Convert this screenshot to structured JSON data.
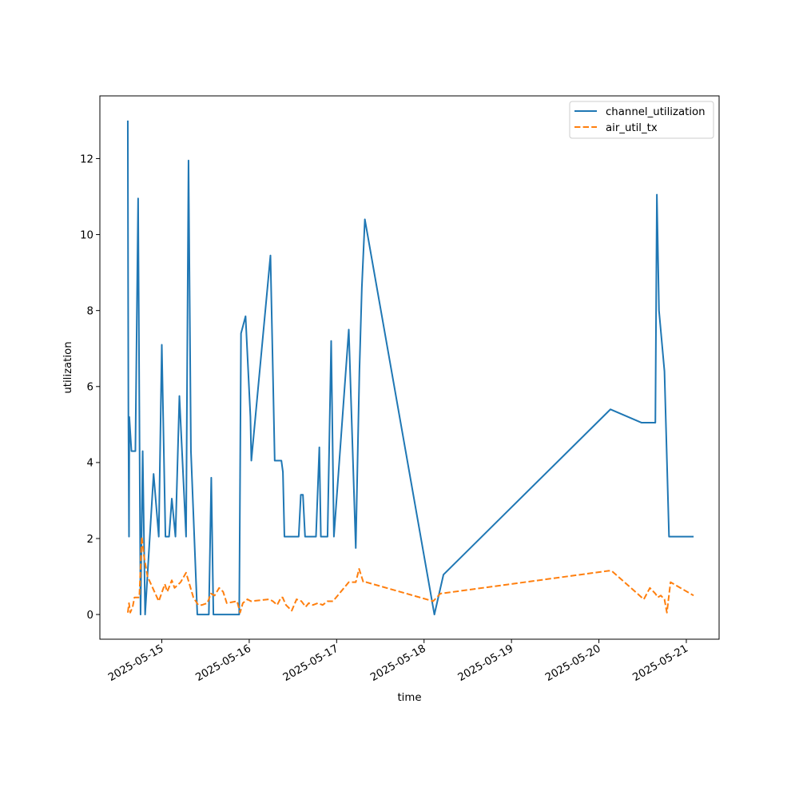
{
  "chart_data": {
    "type": "line",
    "title": "",
    "xlabel": "time",
    "ylabel": "utilization",
    "xlim": [
      "2025-05-14T07:00",
      "2025-05-21T09:00"
    ],
    "ylim": [
      -0.65,
      13.65
    ],
    "x_ticks": [
      "2025-05-15",
      "2025-05-16",
      "2025-05-17",
      "2025-05-18",
      "2025-05-19",
      "2025-05-20",
      "2025-05-21"
    ],
    "y_ticks": [
      0,
      2,
      4,
      6,
      8,
      10,
      12
    ],
    "grid": false,
    "legend": "top-right",
    "series": [
      {
        "name": "channel_utilization",
        "color": "#1f77b4",
        "style": "solid",
        "points": [
          [
            "2025-05-14T14:40",
            13.0
          ],
          [
            "2025-05-14T14:45",
            8.8
          ],
          [
            "2025-05-14T14:50",
            5.2
          ],
          [
            "2025-05-14T15:00",
            2.05
          ],
          [
            "2025-05-14T15:05",
            5.2
          ],
          [
            "2025-05-14T15:40",
            4.3
          ],
          [
            "2025-05-14T16:45",
            4.3
          ],
          [
            "2025-05-14T17:30",
            10.95
          ],
          [
            "2025-05-14T18:10",
            0.0
          ],
          [
            "2025-05-14T18:45",
            4.3
          ],
          [
            "2025-05-14T19:25",
            0.0
          ],
          [
            "2025-05-14T21:45",
            3.7
          ],
          [
            "2025-05-14T23:10",
            2.05
          ],
          [
            "2025-05-15T00:00",
            7.1
          ],
          [
            "2025-05-15T01:00",
            2.05
          ],
          [
            "2025-05-15T02:00",
            2.05
          ],
          [
            "2025-05-15T02:45",
            3.05
          ],
          [
            "2025-05-15T03:45",
            2.05
          ],
          [
            "2025-05-15T04:50",
            5.75
          ],
          [
            "2025-05-15T06:40",
            2.05
          ],
          [
            "2025-05-15T07:20",
            11.95
          ],
          [
            "2025-05-15T08:00",
            4.3
          ],
          [
            "2025-05-15T09:45",
            0.0
          ],
          [
            "2025-05-15T12:55",
            0.0
          ],
          [
            "2025-05-15T13:35",
            3.6
          ],
          [
            "2025-05-15T14:10",
            0.0
          ],
          [
            "2025-05-15T21:15",
            0.0
          ],
          [
            "2025-05-15T21:45",
            7.4
          ],
          [
            "2025-05-15T23:00",
            7.85
          ],
          [
            "2025-05-16T00:20",
            5.2
          ],
          [
            "2025-05-16T00:35",
            4.05
          ],
          [
            "2025-05-16T05:50",
            9.45
          ],
          [
            "2025-05-16T06:35",
            6.0
          ],
          [
            "2025-05-16T07:00",
            4.05
          ],
          [
            "2025-05-16T08:50",
            4.05
          ],
          [
            "2025-05-16T09:15",
            3.75
          ],
          [
            "2025-05-16T09:40",
            2.05
          ],
          [
            "2025-05-16T13:35",
            2.05
          ],
          [
            "2025-05-16T14:10",
            3.15
          ],
          [
            "2025-05-16T14:45",
            3.15
          ],
          [
            "2025-05-16T15:20",
            2.05
          ],
          [
            "2025-05-16T18:20",
            2.05
          ],
          [
            "2025-05-16T19:15",
            4.4
          ],
          [
            "2025-05-16T19:40",
            2.05
          ],
          [
            "2025-05-16T21:30",
            2.05
          ],
          [
            "2025-05-16T22:30",
            7.2
          ],
          [
            "2025-05-16T23:15",
            2.05
          ],
          [
            "2025-05-17T03:20",
            7.5
          ],
          [
            "2025-05-17T05:15",
            1.75
          ],
          [
            "2025-05-17T06:15",
            6.4
          ],
          [
            "2025-05-17T06:55",
            8.6
          ],
          [
            "2025-05-17T07:45",
            10.4
          ],
          [
            "2025-05-18T02:50",
            0.0
          ],
          [
            "2025-05-18T05:20",
            1.05
          ],
          [
            "2025-05-20T03:10",
            5.4
          ],
          [
            "2025-05-20T11:40",
            5.05
          ],
          [
            "2025-05-20T15:30",
            5.05
          ],
          [
            "2025-05-20T15:55",
            11.05
          ],
          [
            "2025-05-20T16:30",
            8.0
          ],
          [
            "2025-05-20T18:00",
            6.4
          ],
          [
            "2025-05-20T19:15",
            2.05
          ],
          [
            "2025-05-21T02:00",
            2.05
          ]
        ]
      },
      {
        "name": "air_util_tx",
        "color": "#ff7f0e",
        "style": "dashed",
        "points": [
          [
            "2025-05-14T14:40",
            0.05
          ],
          [
            "2025-05-14T15:00",
            0.3
          ],
          [
            "2025-05-14T15:20",
            0.05
          ],
          [
            "2025-05-14T16:00",
            0.2
          ],
          [
            "2025-05-14T16:30",
            0.45
          ],
          [
            "2025-05-14T17:50",
            0.45
          ],
          [
            "2025-05-14T18:30",
            2.05
          ],
          [
            "2025-05-14T19:10",
            1.5
          ],
          [
            "2025-05-14T20:05",
            1.0
          ],
          [
            "2025-05-14T23:10",
            0.35
          ],
          [
            "2025-05-15T00:50",
            0.8
          ],
          [
            "2025-05-15T01:30",
            0.6
          ],
          [
            "2025-05-15T02:45",
            0.9
          ],
          [
            "2025-05-15T03:30",
            0.7
          ],
          [
            "2025-05-15T05:10",
            0.85
          ],
          [
            "2025-05-15T06:40",
            1.1
          ],
          [
            "2025-05-15T08:40",
            0.45
          ],
          [
            "2025-05-15T10:00",
            0.25
          ],
          [
            "2025-05-15T11:00",
            0.25
          ],
          [
            "2025-05-15T12:30",
            0.3
          ],
          [
            "2025-05-15T13:30",
            0.55
          ],
          [
            "2025-05-15T14:30",
            0.5
          ],
          [
            "2025-05-15T15:45",
            0.7
          ],
          [
            "2025-05-15T16:50",
            0.6
          ],
          [
            "2025-05-15T17:50",
            0.3
          ],
          [
            "2025-05-15T20:40",
            0.35
          ],
          [
            "2025-05-15T21:30",
            0.05
          ],
          [
            "2025-05-15T22:15",
            0.3
          ],
          [
            "2025-05-15T23:30",
            0.4
          ],
          [
            "2025-05-16T00:30",
            0.35
          ],
          [
            "2025-05-16T05:30",
            0.4
          ],
          [
            "2025-05-16T06:30",
            0.35
          ],
          [
            "2025-05-16T07:40",
            0.25
          ],
          [
            "2025-05-16T08:45",
            0.45
          ],
          [
            "2025-05-16T09:10",
            0.45
          ],
          [
            "2025-05-16T10:05",
            0.25
          ],
          [
            "2025-05-16T11:40",
            0.1
          ],
          [
            "2025-05-16T13:00",
            0.4
          ],
          [
            "2025-05-16T14:20",
            0.35
          ],
          [
            "2025-05-16T15:30",
            0.2
          ],
          [
            "2025-05-16T16:20",
            0.3
          ],
          [
            "2025-05-16T17:30",
            0.25
          ],
          [
            "2025-05-16T18:50",
            0.3
          ],
          [
            "2025-05-16T20:10",
            0.25
          ],
          [
            "2025-05-16T21:30",
            0.35
          ],
          [
            "2025-05-16T23:00",
            0.35
          ],
          [
            "2025-05-17T03:20",
            0.85
          ],
          [
            "2025-05-17T05:15",
            0.85
          ],
          [
            "2025-05-17T06:10",
            1.2
          ],
          [
            "2025-05-17T07:20",
            0.85
          ],
          [
            "2025-05-17T08:10",
            0.85
          ],
          [
            "2025-05-18T02:30",
            0.35
          ],
          [
            "2025-05-18T04:30",
            0.55
          ],
          [
            "2025-05-20T02:40",
            1.15
          ],
          [
            "2025-05-20T03:30",
            1.15
          ],
          [
            "2025-05-20T12:20",
            0.4
          ],
          [
            "2025-05-20T14:00",
            0.7
          ],
          [
            "2025-05-20T15:30",
            0.55
          ],
          [
            "2025-05-20T16:10",
            0.45
          ],
          [
            "2025-05-20T17:00",
            0.5
          ],
          [
            "2025-05-20T18:00",
            0.4
          ],
          [
            "2025-05-20T18:40",
            0.05
          ],
          [
            "2025-05-20T19:40",
            0.85
          ],
          [
            "2025-05-21T02:00",
            0.5
          ]
        ]
      }
    ]
  }
}
